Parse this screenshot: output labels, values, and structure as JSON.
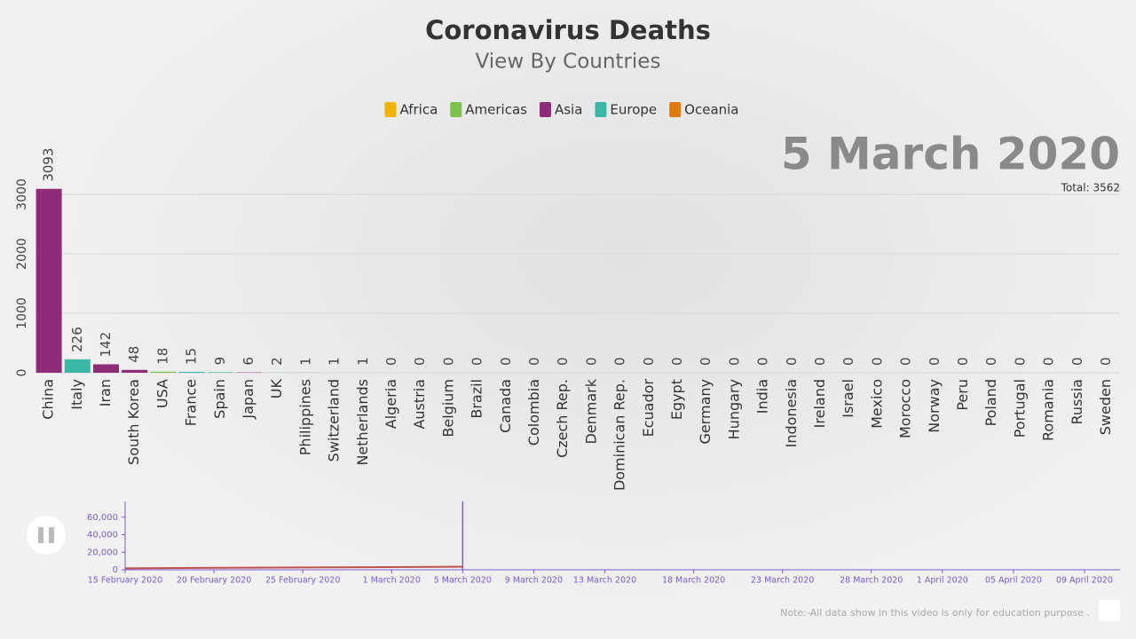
{
  "chart_data": [
    {
      "type": "bar",
      "title": "Coronavirus Deaths",
      "subtitle": "View By Countries",
      "legend": [
        {
          "name": "Africa",
          "color": "#f0b400"
        },
        {
          "name": "Americas",
          "color": "#7dc24a"
        },
        {
          "name": "Asia",
          "color": "#8e2c78"
        },
        {
          "name": "Europe",
          "color": "#3bb7a5"
        },
        {
          "name": "Oceania",
          "color": "#e07a10"
        }
      ],
      "date_label": "5 March 2020",
      "total_label": "Total: 3562",
      "categories": [
        "China",
        "Italy",
        "Iran",
        "South Korea",
        "USA",
        "France",
        "Spain",
        "Japan",
        "UK",
        "Philippines",
        "Switzerland",
        "Netherlands",
        "Algeria",
        "Austria",
        "Belgium",
        "Brazil",
        "Canada",
        "Colombia",
        "Czech Rep.",
        "Denmark",
        "Dominican Rep.",
        "Ecuador",
        "Egypt",
        "Germany",
        "Hungary",
        "India",
        "Indonesia",
        "Ireland",
        "Israel",
        "Mexico",
        "Morocco",
        "Norway",
        "Peru",
        "Poland",
        "Portugal",
        "Romania",
        "Russia",
        "Sweden"
      ],
      "values": [
        3093,
        226,
        142,
        48,
        18,
        15,
        9,
        6,
        2,
        1,
        1,
        1,
        0,
        0,
        0,
        0,
        0,
        0,
        0,
        0,
        0,
        0,
        0,
        0,
        0,
        0,
        0,
        0,
        0,
        0,
        0,
        0,
        0,
        0,
        0,
        0,
        0,
        0
      ],
      "colors": [
        "#8e2c78",
        "#3bb7a5",
        "#8e2c78",
        "#8e2c78",
        "#7dc24a",
        "#3bb7a5",
        "#3bb7a5",
        "#8e2c78",
        "#3bb7a5",
        "#8e2c78",
        "#3bb7a5",
        "#3bb7a5",
        "#f0b400",
        "#3bb7a5",
        "#3bb7a5",
        "#7dc24a",
        "#7dc24a",
        "#7dc24a",
        "#3bb7a5",
        "#3bb7a5",
        "#7dc24a",
        "#7dc24a",
        "#f0b400",
        "#3bb7a5",
        "#3bb7a5",
        "#8e2c78",
        "#8e2c78",
        "#3bb7a5",
        "#8e2c78",
        "#7dc24a",
        "#f0b400",
        "#3bb7a5",
        "#7dc24a",
        "#3bb7a5",
        "#3bb7a5",
        "#3bb7a5",
        "#3bb7a5",
        "#3bb7a5"
      ],
      "ylim": [
        0,
        3500
      ],
      "yticks": [
        0,
        1000,
        2000,
        3000
      ],
      "grid": true
    },
    {
      "type": "line",
      "note": "Note:-All data show in this video is only for education purpose .",
      "x": [
        "2020-02-15",
        "2020-02-20",
        "2020-02-25",
        "2020-03-01",
        "2020-03-05"
      ],
      "series": [
        {
          "color": "#c0504d",
          "values": [
            1666,
            2247,
            2703,
            2977,
            3562
          ]
        }
      ],
      "marker_x": "2020-03-05",
      "marker_color": "#7a5bd0",
      "xlim": [
        "2020-02-15",
        "2020-04-11"
      ],
      "xticks": [
        {
          "value": "2020-02-15",
          "label": "15 February 2020"
        },
        {
          "value": "2020-02-20",
          "label": "20 February 2020"
        },
        {
          "value": "2020-02-25",
          "label": "25 February 2020"
        },
        {
          "value": "2020-03-01",
          "label": "1 March 2020"
        },
        {
          "value": "2020-03-05",
          "label": "5 March 2020"
        },
        {
          "value": "2020-03-09",
          "label": "9 March 2020"
        },
        {
          "value": "2020-03-13",
          "label": "13 March 2020"
        },
        {
          "value": "2020-03-18",
          "label": "18 March 2020"
        },
        {
          "value": "2020-03-23",
          "label": "23 March 2020"
        },
        {
          "value": "2020-03-28",
          "label": "28 March 2020"
        },
        {
          "value": "2020-04-01",
          "label": "1 April 2020"
        },
        {
          "value": "2020-04-05",
          "label": "05 April 2020"
        },
        {
          "value": "2020-04-09",
          "label": "09 April 2020"
        }
      ],
      "ylim": [
        0,
        78000
      ],
      "yticks": [
        0,
        {
          "value": 20000,
          "label": "20,000"
        },
        {
          "value": 40000,
          "label": "40,000"
        },
        {
          "value": 60000,
          "label": "60,000"
        }
      ]
    }
  ]
}
